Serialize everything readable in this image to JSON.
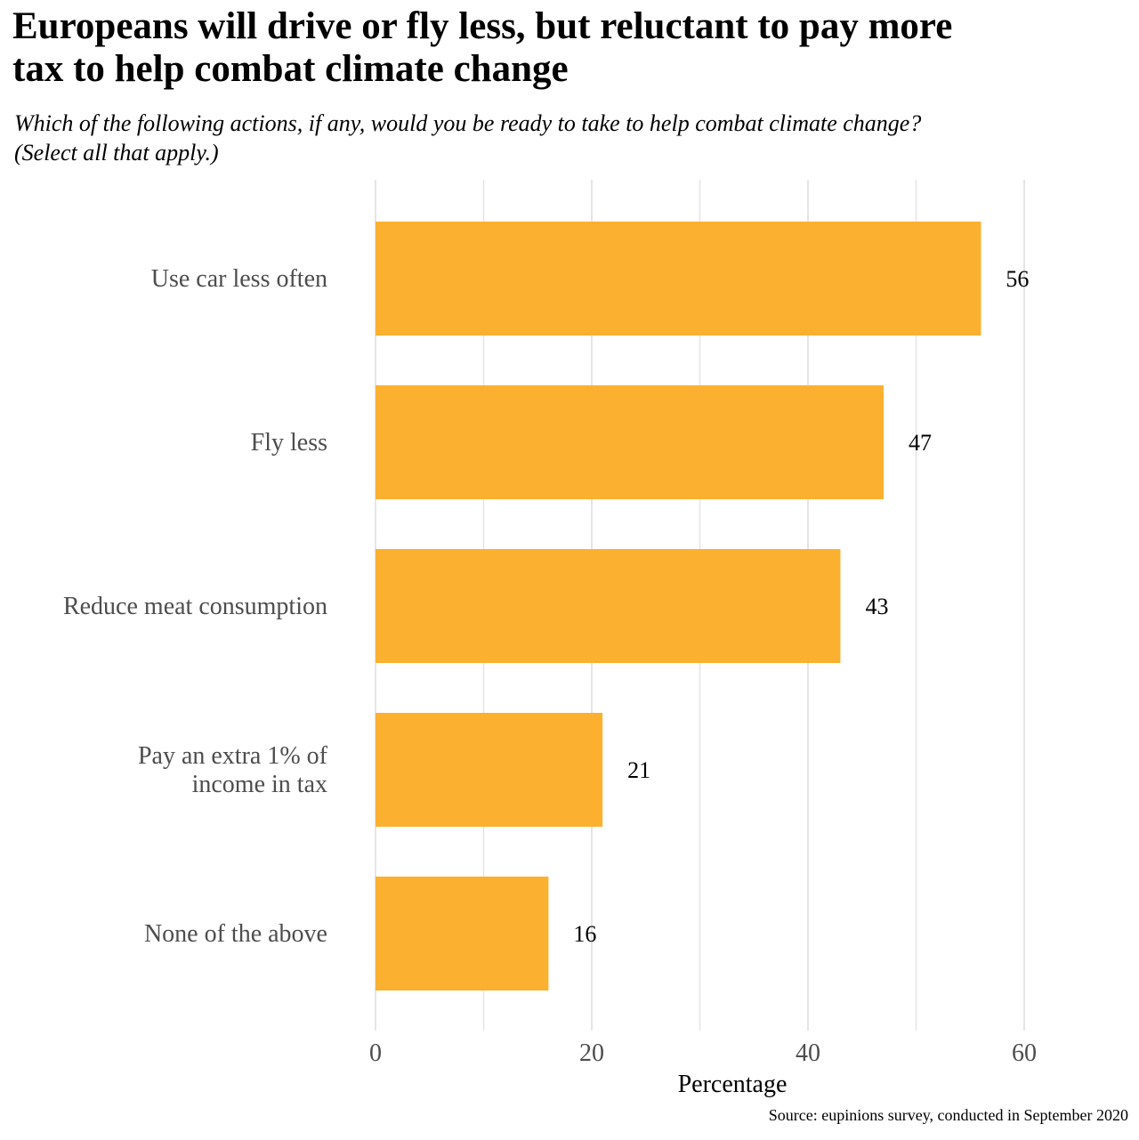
{
  "title": "Europeans will drive or fly less, but reluctant to pay more\n tax to help combat climate change",
  "subtitle": "Which of the following actions, if any, would you be ready to take to help combat climate change?\n (Select all that apply.)",
  "caption": "Source: eupinions survey, conducted in September 2020",
  "colors": {
    "bar": "#FBB030",
    "grid": "#E5E5E5",
    "category_label": "#4D4D4D",
    "tick_label": "#4D4D4D",
    "value_label": "#000000"
  },
  "chart_data": {
    "type": "bar",
    "orientation": "horizontal",
    "categories": [
      "Use car less often",
      "Fly less",
      "Reduce meat consumption",
      "Pay an extra 1% of\nincome in tax",
      "None of the above"
    ],
    "values": [
      56,
      47,
      43,
      21,
      16
    ],
    "data_labels": [
      "56",
      "47",
      "43",
      "21",
      "16"
    ],
    "xlabel": "Percentage",
    "ylabel": "",
    "xlim": [
      0,
      63
    ],
    "xticks": [
      0,
      20,
      40,
      60
    ],
    "xtick_labels": [
      "0",
      "20",
      "40",
      "60"
    ],
    "grid": true,
    "legend": "none"
  }
}
